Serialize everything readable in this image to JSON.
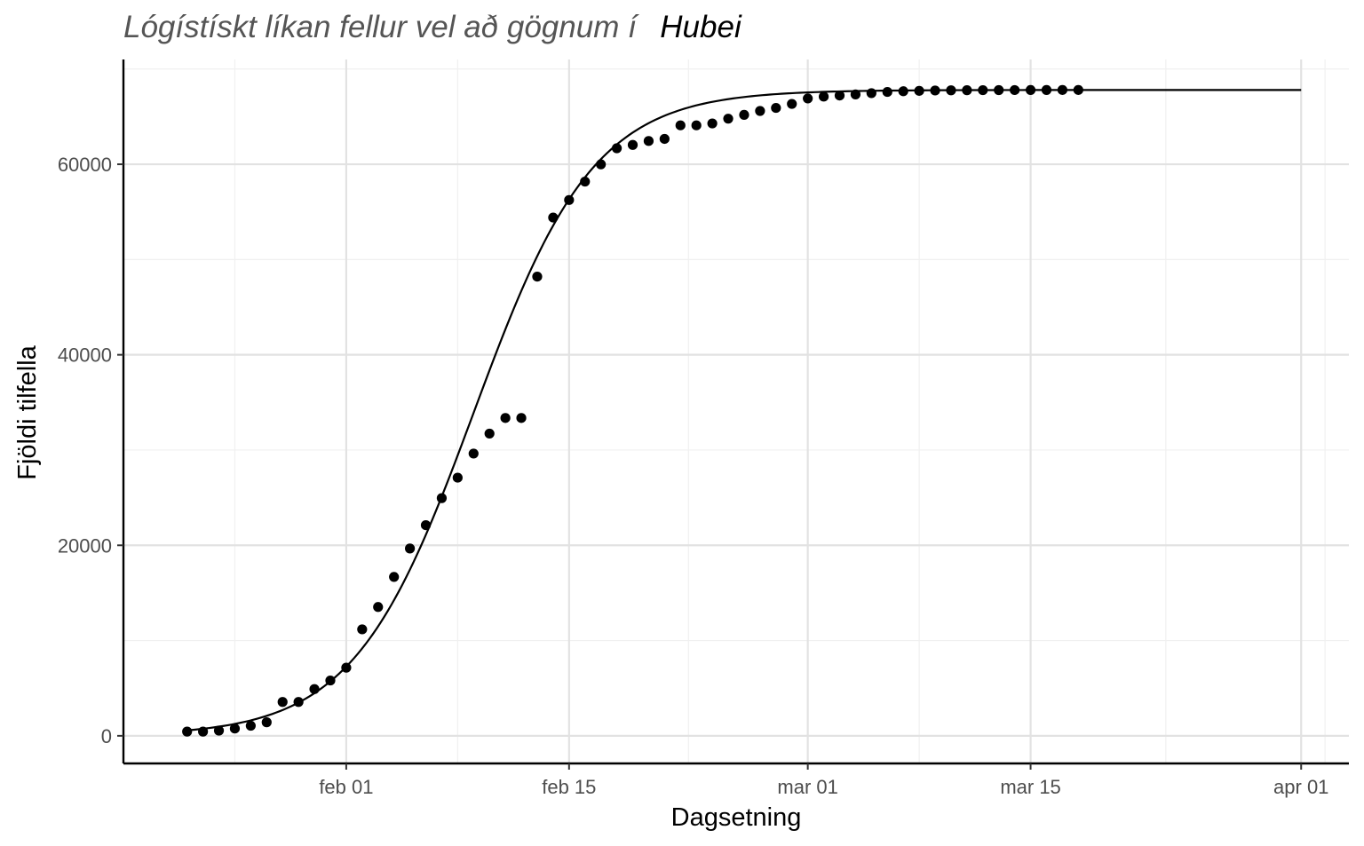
{
  "chart_data": {
    "type": "scatter",
    "title": "Lógístískt líkan fellur vel að gögnum í",
    "title_highlight": "Hubei",
    "xlabel": "Dagsetning",
    "ylabel": "Fjöldi tilfella",
    "x_ticks": [
      "feb 01",
      "feb 15",
      "mar 01",
      "mar 15",
      "apr 01"
    ],
    "y_ticks": [
      "0",
      "20000",
      "40000",
      "60000"
    ],
    "y_tick_values": [
      0,
      20000,
      40000,
      60000
    ],
    "xlim": [
      "2020-01-18",
      "2020-04-04"
    ],
    "ylim": [
      -2900,
      71000
    ],
    "grid": true,
    "point_color": "#000000",
    "series": [
      {
        "type": "scatter",
        "x": [
          "2020-01-22",
          "2020-01-23",
          "2020-01-24",
          "2020-01-25",
          "2020-01-26",
          "2020-01-27",
          "2020-01-28",
          "2020-01-29",
          "2020-01-30",
          "2020-01-31",
          "2020-02-01",
          "2020-02-02",
          "2020-02-03",
          "2020-02-04",
          "2020-02-05",
          "2020-02-06",
          "2020-02-07",
          "2020-02-08",
          "2020-02-09",
          "2020-02-10",
          "2020-02-11",
          "2020-02-12",
          "2020-02-13",
          "2020-02-14",
          "2020-02-15",
          "2020-02-16",
          "2020-02-17",
          "2020-02-18",
          "2020-02-19",
          "2020-02-20",
          "2020-02-21",
          "2020-02-22",
          "2020-02-23",
          "2020-02-24",
          "2020-02-25",
          "2020-02-26",
          "2020-02-27",
          "2020-02-28",
          "2020-02-29",
          "2020-03-01",
          "2020-03-02",
          "2020-03-03",
          "2020-03-04",
          "2020-03-05",
          "2020-03-06",
          "2020-03-07",
          "2020-03-08",
          "2020-03-09",
          "2020-03-10",
          "2020-03-11",
          "2020-03-12",
          "2020-03-13",
          "2020-03-14",
          "2020-03-15",
          "2020-03-16",
          "2020-03-17",
          "2020-03-18"
        ],
        "y": [
          444,
          444,
          549,
          761,
          1058,
          1423,
          3554,
          3554,
          4903,
          5806,
          7153,
          11177,
          13522,
          16678,
          19665,
          22112,
          24953,
          27100,
          29631,
          31728,
          33366,
          33366,
          48206,
          54406,
          56249,
          58182,
          59989,
          61682,
          62031,
          62442,
          62662,
          64084,
          64084,
          64287,
          64786,
          65187,
          65596,
          65914,
          66337,
          66907,
          67103,
          67217,
          67332,
          67466,
          67592,
          67666,
          67707,
          67743,
          67760,
          67773,
          67781,
          67786,
          67790,
          67794,
          67798,
          67799,
          67800
        ]
      },
      {
        "type": "line",
        "model": "logistic",
        "K": 67800,
        "r": 0.265,
        "t0": "2020-02-09",
        "x_start": "2020-01-22",
        "x_end": "2020-04-01"
      }
    ]
  }
}
